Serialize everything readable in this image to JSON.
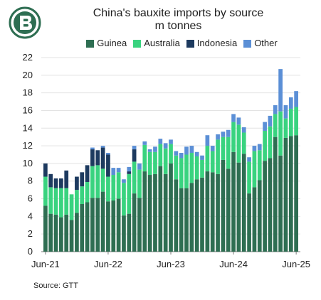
{
  "title": "China's bauxite imports by source",
  "subtitle": "m tonnes",
  "source": "Source: GTT",
  "colors": {
    "Guinea": "#2e6e52",
    "Australia": "#39d37f",
    "Indonesia": "#1d3a5f",
    "Other": "#5b8fd6"
  },
  "chart_data": {
    "type": "bar",
    "stacked": true,
    "title": "China's bauxite imports by source",
    "subtitle": "m tonnes",
    "ylim": [
      0,
      22
    ],
    "yticks": [
      0,
      2,
      4,
      6,
      8,
      10,
      12,
      14,
      16,
      18,
      20,
      22
    ],
    "xtick_labels": [
      "Jun-21",
      "Jun-22",
      "Jun-23",
      "Jun-24",
      "Jun-25"
    ],
    "xtick_positions": [
      0,
      12,
      24,
      36,
      48
    ],
    "grid": "horizontal",
    "legend_position": "top",
    "categories": [
      "Jun-21",
      "Jul-21",
      "Aug-21",
      "Sep-21",
      "Oct-21",
      "Nov-21",
      "Dec-21",
      "Jan-22",
      "Feb-22",
      "Mar-22",
      "Apr-22",
      "May-22",
      "Jun-22",
      "Jul-22",
      "Aug-22",
      "Sep-22",
      "Oct-22",
      "Nov-22",
      "Dec-22",
      "Jan-23",
      "Feb-23",
      "Mar-23",
      "Apr-23",
      "May-23",
      "Jun-23",
      "Jul-23",
      "Aug-23",
      "Sep-23",
      "Oct-23",
      "Nov-23",
      "Dec-23",
      "Jan-24",
      "Feb-24",
      "Mar-24",
      "Apr-24",
      "May-24",
      "Jun-24",
      "Jul-24",
      "Aug-24",
      "Sep-24",
      "Oct-24",
      "Nov-24",
      "Dec-24",
      "Jan-25",
      "Feb-25",
      "Mar-25",
      "Apr-25",
      "May-25",
      "Jun-25"
    ],
    "series": [
      {
        "name": "Guinea",
        "values": [
          5.2,
          4.3,
          4.2,
          3.9,
          4.2,
          3.6,
          4.4,
          5.4,
          5.6,
          6.1,
          6.1,
          6.8,
          5.7,
          5.8,
          6.0,
          4.1,
          4.3,
          6.6,
          6.1,
          9.1,
          8.7,
          8.8,
          9.7,
          8.8,
          10.0,
          8.2,
          7.2,
          7.2,
          7.8,
          8.2,
          8.4,
          9.1,
          9.0,
          8.8,
          10.4,
          9.4,
          11.3,
          10.1,
          11.1,
          6.6,
          7.3,
          8.1,
          10.3,
          10.6,
          13.0,
          10.9,
          12.9,
          13.1,
          13.2
        ]
      },
      {
        "name": "Australia",
        "values": [
          3.3,
          3.0,
          3.0,
          3.3,
          3.0,
          2.9,
          2.6,
          2.0,
          2.3,
          3.6,
          3.7,
          2.6,
          2.8,
          2.9,
          3.0,
          3.7,
          4.5,
          3.6,
          3.2,
          3.0,
          2.6,
          2.5,
          2.5,
          2.9,
          2.2,
          2.7,
          3.4,
          3.8,
          3.4,
          2.6,
          2.0,
          2.9,
          2.4,
          3.9,
          2.6,
          3.6,
          3.4,
          4.3,
          2.4,
          3.6,
          4.1,
          3.4,
          3.4,
          3.6,
          2.6,
          5.0,
          2.2,
          3.1,
          3.2
        ]
      },
      {
        "name": "Indonesia",
        "values": [
          1.5,
          1.5,
          1.1,
          1.1,
          2.0,
          0.0,
          1.5,
          1.6,
          1.9,
          1.9,
          1.7,
          2.4,
          2.5,
          0.0,
          0.0,
          0.0,
          0.3,
          1.4,
          0.0,
          0.0,
          0.0,
          0.0,
          0.0,
          0.0,
          0.0,
          0.0,
          0.0,
          0.0,
          0.0,
          0.0,
          0.0,
          0.0,
          0.0,
          0.0,
          0.0,
          0.0,
          0.0,
          0.0,
          0.0,
          0.0,
          0.0,
          0.0,
          0.0,
          0.0,
          0.0,
          0.0,
          0.0,
          0.0,
          0.0
        ]
      },
      {
        "name": "Other",
        "values": [
          0.0,
          0.0,
          0.0,
          0.0,
          0.0,
          0.0,
          0.0,
          0.0,
          0.0,
          0.2,
          0.0,
          0.2,
          0.2,
          0.8,
          0.5,
          0.4,
          0.5,
          0.4,
          0.7,
          0.4,
          0.3,
          0.6,
          0.6,
          0.6,
          0.5,
          0.5,
          0.6,
          0.9,
          0.8,
          0.5,
          0.5,
          1.2,
          0.6,
          0.6,
          0.6,
          0.8,
          0.9,
          0.8,
          0.6,
          0.5,
          0.6,
          0.7,
          1.0,
          1.2,
          1.0,
          4.8,
          1.5,
          1.3,
          1.8
        ]
      }
    ]
  }
}
